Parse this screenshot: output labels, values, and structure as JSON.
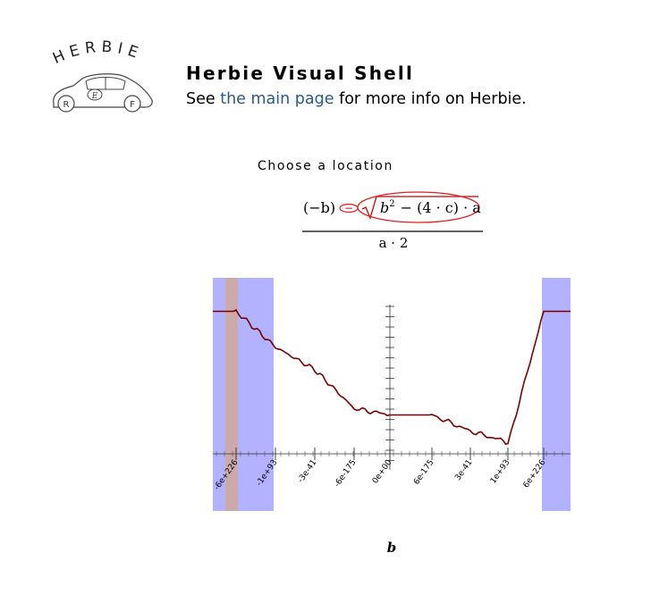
{
  "header": {
    "logo_text": "HERBIE",
    "logo_wheel_left": "R",
    "logo_emblem": "E",
    "logo_wheel_right": "F",
    "title": "Herbie Visual Shell",
    "subtitle_prefix": "See ",
    "main_page_link": "the main page",
    "subtitle_suffix": " for more info on Herbie."
  },
  "prompt": "Choose a location",
  "formula": {
    "numerator_left": "(−b)",
    "operator": "−",
    "radicand_b": "b",
    "radicand_exp": "2",
    "radicand_rest": "− (4 · c) · a",
    "denominator": "a · 2"
  },
  "plot": {
    "variable": "b",
    "accent_color": "#7a0000",
    "highlight_color": "#b2b2ff",
    "highlight_overlap_color": "#ccaaaa",
    "tick_labels": [
      "-6e+226",
      "-1e+93",
      "-3e-41",
      "-6e-175",
      "0e+00",
      "6e-175",
      "3e-41",
      "1e+93",
      "6e+226"
    ]
  },
  "chart_data": {
    "type": "line",
    "title": "",
    "xlabel": "b",
    "ylabel": "",
    "x": [
      "-6e+226",
      "-1e+93",
      "-3e-41",
      "-6e-175",
      "0e+00",
      "6e-175",
      "3e-41",
      "1e+93",
      "6e+226"
    ],
    "series": [
      {
        "values": [
          44,
          36,
          25,
          14,
          12,
          12,
          7,
          3,
          44
        ]
      }
    ],
    "ylim": [
      0,
      48
    ],
    "grid": false
  }
}
